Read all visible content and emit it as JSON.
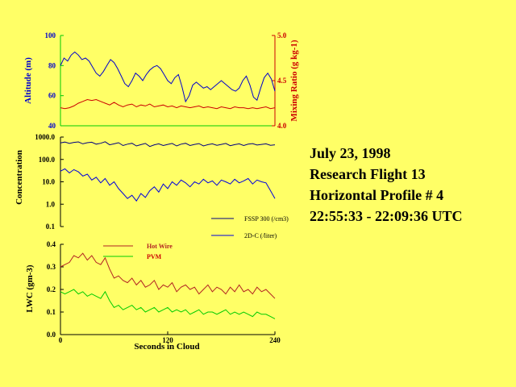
{
  "info": {
    "date": "July 23, 1998",
    "flight": "Research Flight 13",
    "profile": "Horizontal Profile # 4",
    "time_range": "22:55:33 - 22:09:36 UTC"
  },
  "colors": {
    "background": "#ffff66",
    "altitude": "#0000cc",
    "mixing_ratio": "#cc0000",
    "fssp": "#000080",
    "twodc": "#0000dd",
    "hotwire": "#b22222",
    "pvm": "#00cc00",
    "axis_green": "#00cc00",
    "axis_red": "#cc0000",
    "axis_blue": "#0000cc"
  },
  "chart_data": [
    {
      "type": "line",
      "panel": "altitude-mixing",
      "xlim": [
        0,
        240
      ],
      "ylabel": "Altitude (m)",
      "ylim": [
        40,
        100
      ],
      "yticks": [
        "40",
        "60",
        "80",
        "100"
      ],
      "y2label": "Mixing Ratio (g kg-1)",
      "y2lim": [
        4.0,
        5.0
      ],
      "y2ticks": [
        "4.0",
        "4.5",
        "5.0"
      ],
      "series": [
        {
          "key": "altitude",
          "axis": "left",
          "x": [
            0,
            4,
            8,
            12,
            16,
            20,
            24,
            28,
            32,
            36,
            40,
            44,
            48,
            52,
            56,
            60,
            64,
            68,
            72,
            76,
            80,
            84,
            88,
            92,
            96,
            100,
            104,
            108,
            112,
            116,
            120,
            124,
            128,
            132,
            136,
            140,
            144,
            148,
            152,
            156,
            160,
            164,
            168,
            172,
            176,
            180,
            184,
            188,
            192,
            196,
            200,
            204,
            208,
            212,
            216,
            220,
            224,
            228,
            232,
            236,
            240
          ],
          "values": [
            80,
            85,
            83,
            87,
            89,
            87,
            84,
            85,
            83,
            79,
            75,
            73,
            76,
            80,
            84,
            82,
            78,
            73,
            68,
            66,
            70,
            75,
            73,
            70,
            74,
            77,
            79,
            80,
            78,
            74,
            70,
            68,
            72,
            74,
            66,
            56,
            60,
            67,
            69,
            67,
            65,
            66,
            64,
            66,
            68,
            70,
            68,
            66,
            64,
            63,
            65,
            70,
            73,
            67,
            59,
            57,
            65,
            72,
            75,
            71,
            63
          ]
        },
        {
          "key": "mixing_ratio",
          "axis": "right",
          "x": [
            0,
            5,
            10,
            15,
            20,
            25,
            30,
            35,
            40,
            45,
            50,
            55,
            60,
            65,
            70,
            75,
            80,
            85,
            90,
            95,
            100,
            105,
            110,
            115,
            120,
            125,
            130,
            135,
            140,
            145,
            150,
            155,
            160,
            165,
            170,
            175,
            180,
            185,
            190,
            195,
            200,
            205,
            210,
            215,
            220,
            225,
            230,
            235,
            240
          ],
          "values": [
            4.2,
            4.19,
            4.2,
            4.22,
            4.25,
            4.27,
            4.29,
            4.28,
            4.29,
            4.27,
            4.25,
            4.23,
            4.26,
            4.23,
            4.21,
            4.23,
            4.24,
            4.21,
            4.23,
            4.22,
            4.24,
            4.21,
            4.22,
            4.23,
            4.21,
            4.22,
            4.2,
            4.22,
            4.21,
            4.2,
            4.21,
            4.22,
            4.2,
            4.21,
            4.2,
            4.19,
            4.21,
            4.2,
            4.19,
            4.21,
            4.2,
            4.2,
            4.19,
            4.2,
            4.19,
            4.2,
            4.21,
            4.19,
            4.2
          ]
        }
      ]
    },
    {
      "type": "line",
      "panel": "concentration",
      "xlim": [
        0,
        240
      ],
      "ylabel": "Concentration",
      "yscale": "log",
      "ylim": [
        0.1,
        1000
      ],
      "yticks": [
        "0.1",
        "1.0",
        "10.0",
        "100.0",
        "1000.0"
      ],
      "legend": [
        "FSSP 300 (/cm3)",
        "2D-C (/liter)"
      ],
      "series": [
        {
          "key": "fssp",
          "name": "FSSP 300 (/cm3)",
          "x": [
            0,
            5,
            10,
            15,
            20,
            25,
            30,
            35,
            40,
            45,
            50,
            55,
            60,
            65,
            70,
            75,
            80,
            85,
            90,
            95,
            100,
            105,
            110,
            115,
            120,
            125,
            130,
            135,
            140,
            145,
            150,
            155,
            160,
            165,
            170,
            175,
            180,
            185,
            190,
            195,
            200,
            205,
            210,
            215,
            220,
            225,
            230,
            235,
            240
          ],
          "values": [
            550,
            600,
            520,
            580,
            610,
            500,
            560,
            590,
            480,
            530,
            620,
            450,
            500,
            560,
            420,
            480,
            530,
            400,
            460,
            520,
            380,
            450,
            500,
            420,
            470,
            520,
            400,
            480,
            530,
            420,
            470,
            510,
            400,
            460,
            500,
            430,
            470,
            520,
            410,
            460,
            500,
            420,
            480,
            510,
            440,
            470,
            500,
            430,
            450
          ]
        },
        {
          "key": "twodc",
          "name": "2D-C (/liter)",
          "x": [
            0,
            5,
            10,
            15,
            20,
            25,
            30,
            35,
            40,
            45,
            50,
            55,
            60,
            65,
            70,
            75,
            80,
            85,
            90,
            95,
            100,
            105,
            110,
            115,
            120,
            125,
            130,
            135,
            140,
            145,
            150,
            155,
            160,
            165,
            170,
            175,
            180,
            185,
            190,
            195,
            200,
            205,
            210,
            215,
            220,
            225,
            230,
            235,
            240
          ],
          "values": [
            30,
            38,
            25,
            35,
            28,
            18,
            22,
            12,
            16,
            9,
            14,
            7,
            10,
            5,
            3,
            1.8,
            2.5,
            1.4,
            3,
            2,
            4,
            6,
            3.5,
            8,
            5,
            10,
            7,
            12,
            9,
            6,
            10,
            8,
            13,
            9,
            11,
            7,
            12,
            10,
            8,
            13,
            9,
            11,
            14,
            8,
            12,
            10,
            9,
            4,
            1.8
          ]
        }
      ]
    },
    {
      "type": "line",
      "panel": "lwc",
      "xlabel": "Seconds in Cloud",
      "xlim": [
        0,
        240
      ],
      "xticks": [
        "0",
        "120",
        "240"
      ],
      "ylabel": "LWC (gm-3)",
      "ylim": [
        0.0,
        0.4
      ],
      "yticks": [
        "0.0",
        "0.1",
        "0.2",
        "0.3",
        "0.4"
      ],
      "legend": [
        "Hot Wire",
        "PVM"
      ],
      "series": [
        {
          "key": "hotwire",
          "name": "Hot Wire",
          "x": [
            0,
            5,
            10,
            15,
            20,
            25,
            30,
            35,
            40,
            45,
            50,
            55,
            60,
            65,
            70,
            75,
            80,
            85,
            90,
            95,
            100,
            105,
            110,
            115,
            120,
            125,
            130,
            135,
            140,
            145,
            150,
            155,
            160,
            165,
            170,
            175,
            180,
            185,
            190,
            195,
            200,
            205,
            210,
            215,
            220,
            225,
            230,
            235,
            240
          ],
          "values": [
            0.3,
            0.31,
            0.32,
            0.35,
            0.34,
            0.36,
            0.33,
            0.35,
            0.32,
            0.31,
            0.34,
            0.29,
            0.25,
            0.26,
            0.24,
            0.23,
            0.25,
            0.22,
            0.24,
            0.21,
            0.22,
            0.24,
            0.2,
            0.22,
            0.21,
            0.23,
            0.19,
            0.21,
            0.22,
            0.2,
            0.21,
            0.18,
            0.2,
            0.22,
            0.19,
            0.21,
            0.2,
            0.18,
            0.21,
            0.19,
            0.22,
            0.19,
            0.2,
            0.18,
            0.21,
            0.19,
            0.2,
            0.18,
            0.16
          ]
        },
        {
          "key": "pvm",
          "name": "PVM",
          "x": [
            0,
            5,
            10,
            15,
            20,
            25,
            30,
            35,
            40,
            45,
            50,
            55,
            60,
            65,
            70,
            75,
            80,
            85,
            90,
            95,
            100,
            105,
            110,
            115,
            120,
            125,
            130,
            135,
            140,
            145,
            150,
            155,
            160,
            165,
            170,
            175,
            180,
            185,
            190,
            195,
            200,
            205,
            210,
            215,
            220,
            225,
            230,
            235,
            240
          ],
          "values": [
            0.19,
            0.18,
            0.19,
            0.2,
            0.18,
            0.19,
            0.17,
            0.18,
            0.17,
            0.16,
            0.19,
            0.15,
            0.12,
            0.13,
            0.11,
            0.12,
            0.13,
            0.11,
            0.12,
            0.1,
            0.11,
            0.12,
            0.1,
            0.11,
            0.12,
            0.1,
            0.11,
            0.1,
            0.11,
            0.09,
            0.1,
            0.11,
            0.09,
            0.1,
            0.1,
            0.09,
            0.1,
            0.11,
            0.09,
            0.1,
            0.09,
            0.1,
            0.09,
            0.08,
            0.1,
            0.09,
            0.09,
            0.08,
            0.07
          ]
        }
      ]
    }
  ]
}
